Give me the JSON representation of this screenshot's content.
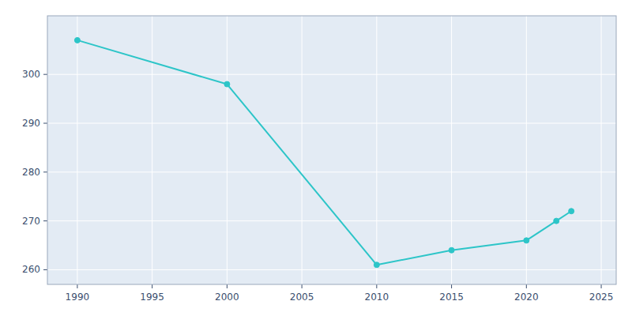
{
  "chart_data": {
    "type": "line",
    "x": [
      1990,
      2000,
      2010,
      2015,
      2020,
      2022,
      2023
    ],
    "values": [
      307,
      298,
      261,
      264,
      266,
      270,
      272
    ],
    "color": "#2DC5C8",
    "marker": "circle",
    "xlim": [
      1988,
      2026
    ],
    "ylim": [
      257,
      312
    ],
    "xticks": [
      1990,
      1995,
      2000,
      2005,
      2010,
      2015,
      2020,
      2025
    ],
    "yticks": [
      260,
      270,
      280,
      290,
      300
    ],
    "grid": true
  }
}
